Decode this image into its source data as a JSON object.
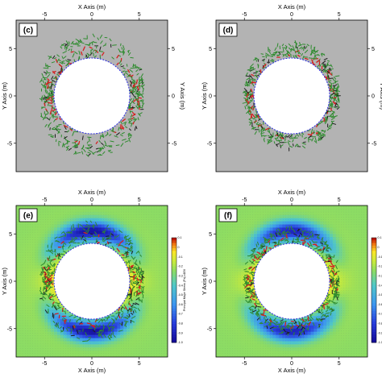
{
  "chart_data": [
    {
      "type": "vector",
      "panel_label": "(c)",
      "xlabel": "X Axis (m)",
      "ylabel": "Y Axis (m)",
      "xlim": [
        -8,
        8
      ],
      "ylim": [
        -8,
        8
      ],
      "xticks": [
        "-5",
        "0",
        "5"
      ],
      "yticks": [
        "5",
        "0",
        "-5"
      ],
      "background": "#b3b3b3",
      "opening_radius_m": 4,
      "crack_zone_extent_m": 6.3,
      "colorbar": false
    },
    {
      "type": "vector",
      "panel_label": "(d)",
      "xlabel": "X Axis (m)",
      "ylabel": "Y Axis (m)",
      "xlim": [
        -8,
        8
      ],
      "ylim": [
        -8,
        8
      ],
      "xticks": [
        "-5",
        "0",
        "5"
      ],
      "yticks": [
        "5",
        "0",
        "-5"
      ],
      "background": "#b3b3b3",
      "opening_radius_m": 4,
      "crack_zone_extent_m": 5.6,
      "colorbar": false
    },
    {
      "type": "heatmap",
      "panel_label": "(e)",
      "xlabel": "X Axis (m)",
      "ylabel": "Y Axis (m)",
      "xlim": [
        -8,
        8
      ],
      "ylim": [
        -8,
        8
      ],
      "xticks": [
        "-5",
        "0",
        "5"
      ],
      "yticks": [
        "5",
        "0",
        "-5"
      ],
      "opening_radius_m": 4,
      "crack_zone_extent_m": 6.3,
      "colorbar": true,
      "colorbar_label": "Principal Major Stress (Pa) x1E6",
      "colorbar_ticks": [
        "0.1",
        "0",
        "-0.1",
        "-0.2",
        "-0.3",
        "-0.4",
        "-0.5",
        "-0.6",
        "-0.7",
        "-0.8",
        "-0.9",
        "-1.0"
      ],
      "colorbar_range": [
        -1.0,
        0.1
      ]
    },
    {
      "type": "heatmap",
      "panel_label": "(f)",
      "xlabel": "X Axis (m)",
      "ylabel": "Y Axis (m)",
      "xlim": [
        -8,
        8
      ],
      "ylim": [
        -8,
        8
      ],
      "xticks": [
        "-5",
        "0",
        "5"
      ],
      "yticks": [
        "5",
        "0",
        "-5"
      ],
      "opening_radius_m": 4,
      "crack_zone_extent_m": 5.6,
      "colorbar": true,
      "colorbar_label": "Principal Major Stress (Pa) x1E6",
      "colorbar_ticks": [
        "0.1",
        "0",
        "-0.1",
        "-0.2",
        "-0.3",
        "-0.4",
        "-0.5",
        "-0.6",
        "-0.7",
        "-0.8",
        "-0.9",
        "-1.0"
      ],
      "colorbar_range": [
        -1.0,
        0.1
      ]
    }
  ],
  "colors": {
    "grey_background": "#b3b3b3",
    "crack_green": "#2e8b2e",
    "crack_red": "#d42020",
    "opening_edge": "#2a2ae0"
  }
}
